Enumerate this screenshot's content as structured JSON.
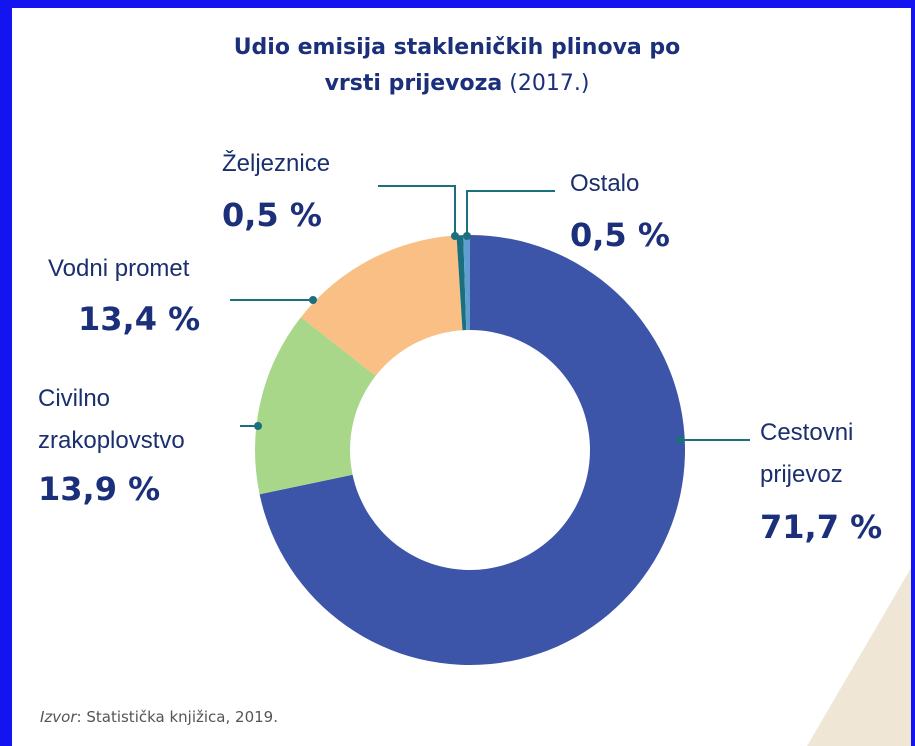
{
  "chart_data": {
    "type": "donut",
    "title": "Udio emisija stakleničkih plinova po vrsti prijevoza",
    "title_note": "(2017.)",
    "categories": [
      "Cestovni prijevoz",
      "Civilno zrakoplovstvo",
      "Vodni promet",
      "Željeznice",
      "Ostalo"
    ],
    "values": [
      71.7,
      13.9,
      13.4,
      0.5,
      0.5
    ],
    "value_labels": [
      "71,7 %",
      "13,9 %",
      "13,4 %",
      "0,5 %",
      "0,5 %"
    ],
    "colors": [
      "#3d55a8",
      "#a9d78a",
      "#f9bf84",
      "#1c6f7e",
      "#5f9fd0"
    ],
    "source_label": "Izvor",
    "source_text": ": Statistička knjižica, 2019."
  }
}
